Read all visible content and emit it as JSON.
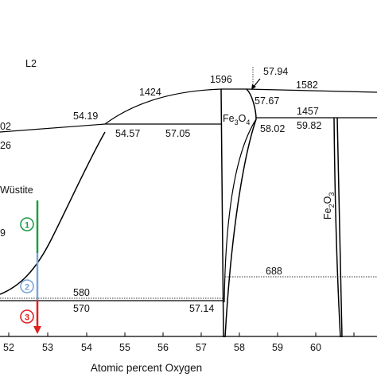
{
  "axis": {
    "xlabel": "Atomic percent Oxygen",
    "ticks": [
      "52",
      "53",
      "54",
      "55",
      "56",
      "57",
      "58",
      "59",
      "60"
    ]
  },
  "phases": {
    "liquid": "L2",
    "wustite": "Wüstite",
    "magnetite_base": "Fe",
    "magnetite_sub1": "3",
    "magnetite_o": "O",
    "magnetite_sub2": "4",
    "hematite_base": "Fe",
    "hematite_sub1": "2",
    "hematite_o": "O",
    "hematite_sub2": "3"
  },
  "annotations": {
    "t1424": "1424",
    "t1596": "1596",
    "c5794": "57.94",
    "t1582": "1582",
    "c5767": "57.67",
    "t1457": "1457",
    "c5419": "54.19",
    "c5457": "54.57",
    "c5705": "57.05",
    "c5802": "58.02",
    "c5982": "59.82",
    "t688": "688",
    "t580": "580",
    "t570": "570",
    "c5714": "57.14",
    "edge_02": "02",
    "edge_26": "26",
    "edge_9": "9"
  },
  "markers": [
    {
      "label": "1",
      "color": "#1a9e45"
    },
    {
      "label": "2",
      "color": "#7aa6d8"
    },
    {
      "label": "3",
      "color": "#e02020"
    }
  ]
}
